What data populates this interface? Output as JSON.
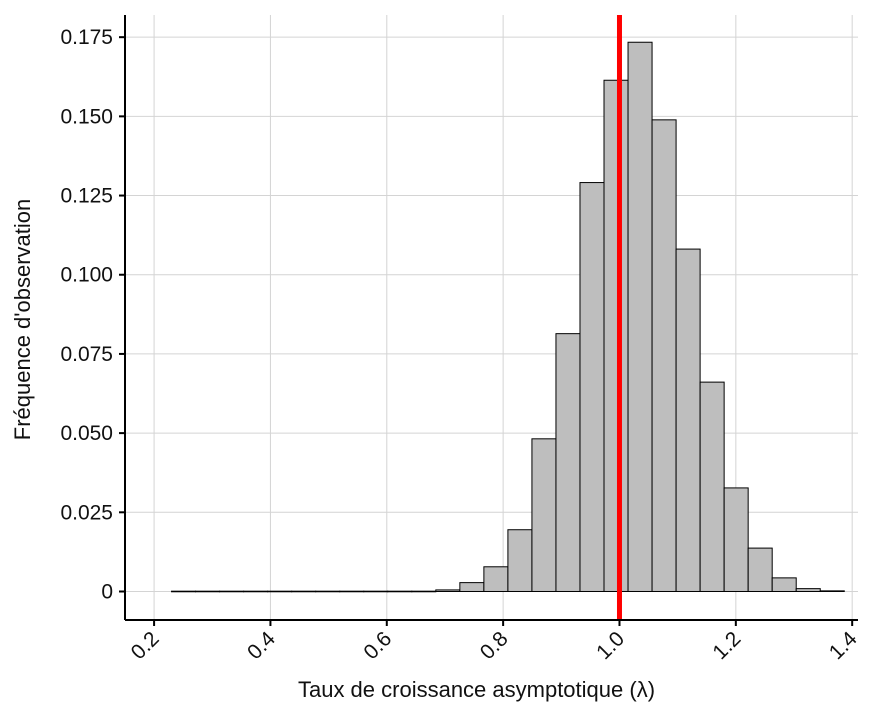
{
  "chart_data": {
    "type": "bar",
    "title": "",
    "xlabel": "Taux de croissance asymptotique (λ)",
    "ylabel": "Fréquence d'observation",
    "xlim": [
      0.15,
      1.41
    ],
    "ylim": [
      -0.009,
      0.182
    ],
    "xticks": [
      "0.2",
      "0.4",
      "0.6",
      "0.8",
      "1.0",
      "1.2",
      "1.4"
    ],
    "yticks": [
      "0",
      "0.025",
      "0.050",
      "0.075",
      "0.100",
      "0.125",
      "0.150",
      "0.175"
    ],
    "grid": true,
    "bin_width": 0.0413,
    "bin_starts": [
      0.23,
      0.2713,
      0.3126,
      0.3539,
      0.3952,
      0.4365,
      0.4778,
      0.5191,
      0.5604,
      0.6017,
      0.643,
      0.6843,
      0.7256,
      0.7669,
      0.8082,
      0.8495,
      0.8908,
      0.9321,
      0.9734,
      1.0147,
      1.056,
      1.0973,
      1.1386,
      1.1799,
      1.2212,
      1.2625,
      1.3038,
      1.3451
    ],
    "values": [
      0.0001,
      0.0001,
      0.0001,
      0.0001,
      0.0001,
      0.0001,
      0.0001,
      0.0001,
      0.0001,
      0.0001,
      0.0001,
      0.0005,
      0.0028,
      0.0078,
      0.0195,
      0.0482,
      0.0814,
      0.1291,
      0.1614,
      0.1734,
      0.1489,
      0.1081,
      0.0661,
      0.0327,
      0.0137,
      0.0043,
      0.0009,
      0.0002
    ],
    "reference_line": {
      "x": 1.0,
      "color": "#ff0000"
    },
    "bar_color": "#bebebe",
    "bar_edge_color": "#000000"
  }
}
